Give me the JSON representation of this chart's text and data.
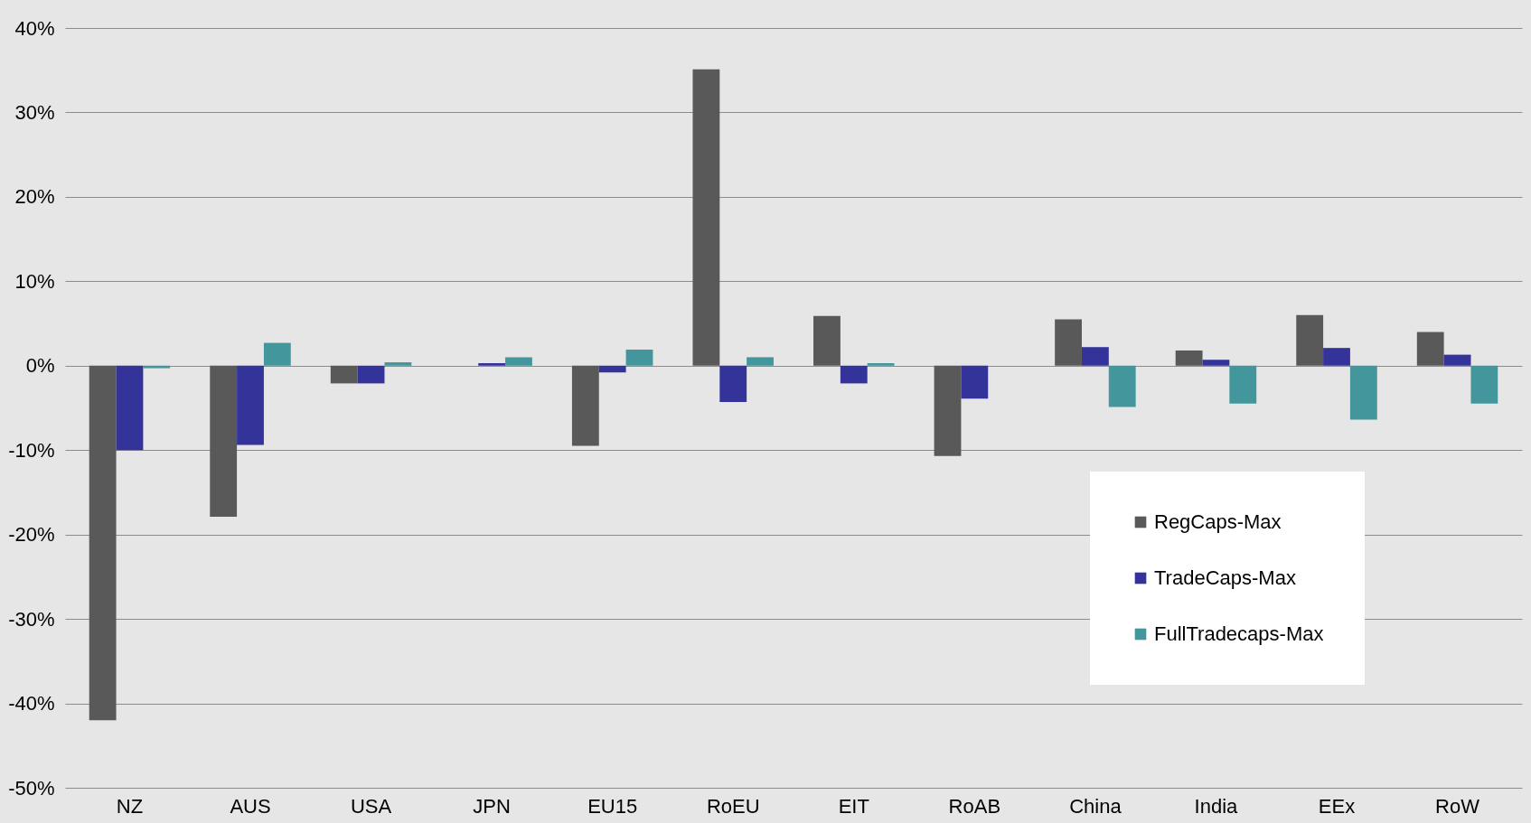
{
  "chart_data": {
    "type": "bar",
    "categories": [
      "NZ",
      "AUS",
      "USA",
      "JPN",
      "EU15",
      "RoEU",
      "EIT",
      "RoAB",
      "China",
      "India",
      "EEx",
      "RoW"
    ],
    "series": [
      {
        "name": "RegCaps-Max",
        "color": "#595959",
        "values": [
          -42.0,
          -17.9,
          -2.1,
          0,
          -9.5,
          35.1,
          5.9,
          -10.7,
          5.5,
          1.8,
          6.0,
          4.0
        ]
      },
      {
        "name": "TradeCaps-Max",
        "color": "#333399",
        "values": [
          -10.0,
          -9.4,
          -2.1,
          0.3,
          -0.8,
          -4.3,
          -2.1,
          -3.9,
          2.2,
          0.7,
          2.1,
          1.3
        ]
      },
      {
        "name": "FullTradecaps-Max",
        "color": "#43979c",
        "values": [
          -0.3,
          2.7,
          0.4,
          1.0,
          1.9,
          1.0,
          0.3,
          0,
          -4.9,
          -4.5,
          -6.4,
          -4.5
        ]
      }
    ],
    "ylim": [
      -50,
      40
    ],
    "yticks": [
      {
        "value": -50,
        "label": "-50%"
      },
      {
        "value": -40,
        "label": "-40%"
      },
      {
        "value": -30,
        "label": "-30%"
      },
      {
        "value": -20,
        "label": "-20%"
      },
      {
        "value": -10,
        "label": "-10%"
      },
      {
        "value": 0,
        "label": "0%"
      },
      {
        "value": 10,
        "label": "10%"
      },
      {
        "value": 20,
        "label": "20%"
      },
      {
        "value": 30,
        "label": "30%"
      },
      {
        "value": 40,
        "label": "40%"
      }
    ],
    "grid": "y",
    "legend": "bottom right"
  }
}
